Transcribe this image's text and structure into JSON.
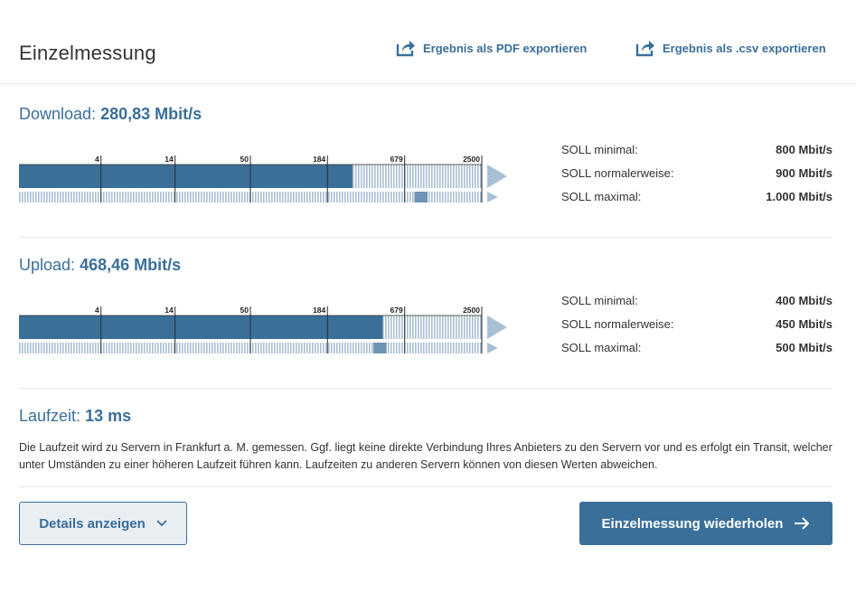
{
  "header": {
    "title": "Einzelmessung",
    "export_pdf": "Ergebnis als PDF exportieren",
    "export_csv": "Ergebnis als .csv exportieren"
  },
  "scale_labels": [
    "4",
    "14",
    "50",
    "184",
    "679",
    "2500"
  ],
  "download": {
    "label": "Download:",
    "value": "280,83 Mbit/s",
    "measured_mbit": 280.83,
    "soll": [
      {
        "label": "SOLL minimal:",
        "value": "800 Mbit/s",
        "mbit": 800
      },
      {
        "label": "SOLL normalerweise:",
        "value": "900 Mbit/s",
        "mbit": 900
      },
      {
        "label": "SOLL maximal:",
        "value": "1.000 Mbit/s",
        "mbit": 1000
      }
    ]
  },
  "upload": {
    "label": "Upload:",
    "value": "468,46 Mbit/s",
    "measured_mbit": 468.46,
    "soll": [
      {
        "label": "SOLL minimal:",
        "value": "400 Mbit/s",
        "mbit": 400
      },
      {
        "label": "SOLL normalerweise:",
        "value": "450 Mbit/s",
        "mbit": 450
      },
      {
        "label": "SOLL maximal:",
        "value": "500 Mbit/s",
        "mbit": 500
      }
    ]
  },
  "latency": {
    "label": "Laufzeit:",
    "value": "13 ms",
    "description": "Die Laufzeit wird zu Servern in Frankfurt a. M. gemessen. Ggf. liegt keine direkte Verbindung Ihres Anbieters zu den Servern vor und es erfolgt ein Transit, welcher unter Umständen zu einer höheren Laufzeit führen kann. Laufzeiten zu anderen Servern können von diesen Werten abweichen."
  },
  "buttons": {
    "details": "Details anzeigen",
    "repeat": "Einzelmessung wiederholen"
  },
  "colors": {
    "accent": "#3a6f9a",
    "bar_light": "#a9bfd3",
    "soll_band": "#6f93b5"
  }
}
